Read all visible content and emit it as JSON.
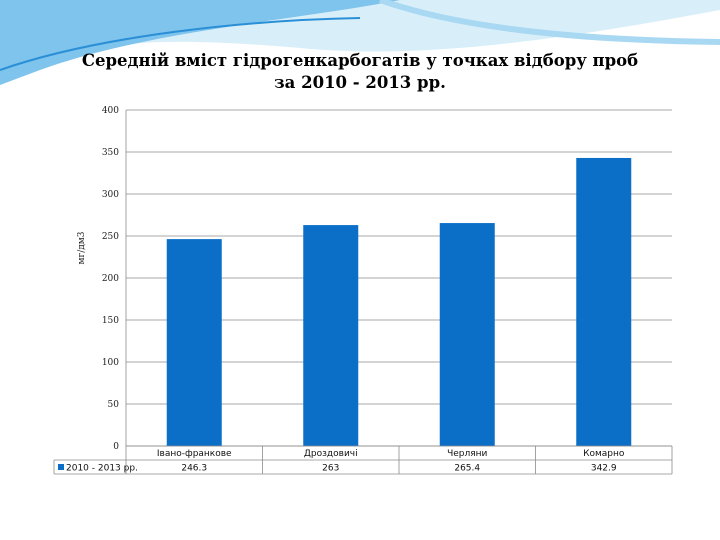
{
  "colors": {
    "bar": "#0b6fc8",
    "grid": "#8c8c8c",
    "deco_dark": "#2a8fd6",
    "deco_light": "#bfe3f7"
  },
  "chart_data": {
    "type": "bar",
    "title_line1": "Середній вміст гідрогенкарбогатів у точках відбору проб",
    "title_line2": "за 2010 - 2013 рр.",
    "ylabel": "мг/дм3",
    "xlabel": "",
    "ylim": [
      0,
      400
    ],
    "yticks": [
      "0",
      "50",
      "100",
      "150",
      "200",
      "250",
      "300",
      "350",
      "400"
    ],
    "categories": [
      "Івано-франкове",
      "Дроздовичі",
      "Черляни",
      "Комарно"
    ],
    "series": [
      {
        "name": "2010 - 2013 рр.",
        "values": [
          246.3,
          263,
          265.4,
          342.9
        ],
        "labels": [
          "246.3",
          "263",
          "265.4",
          "342.9"
        ]
      }
    ],
    "legend": "data-table",
    "grid": true
  }
}
